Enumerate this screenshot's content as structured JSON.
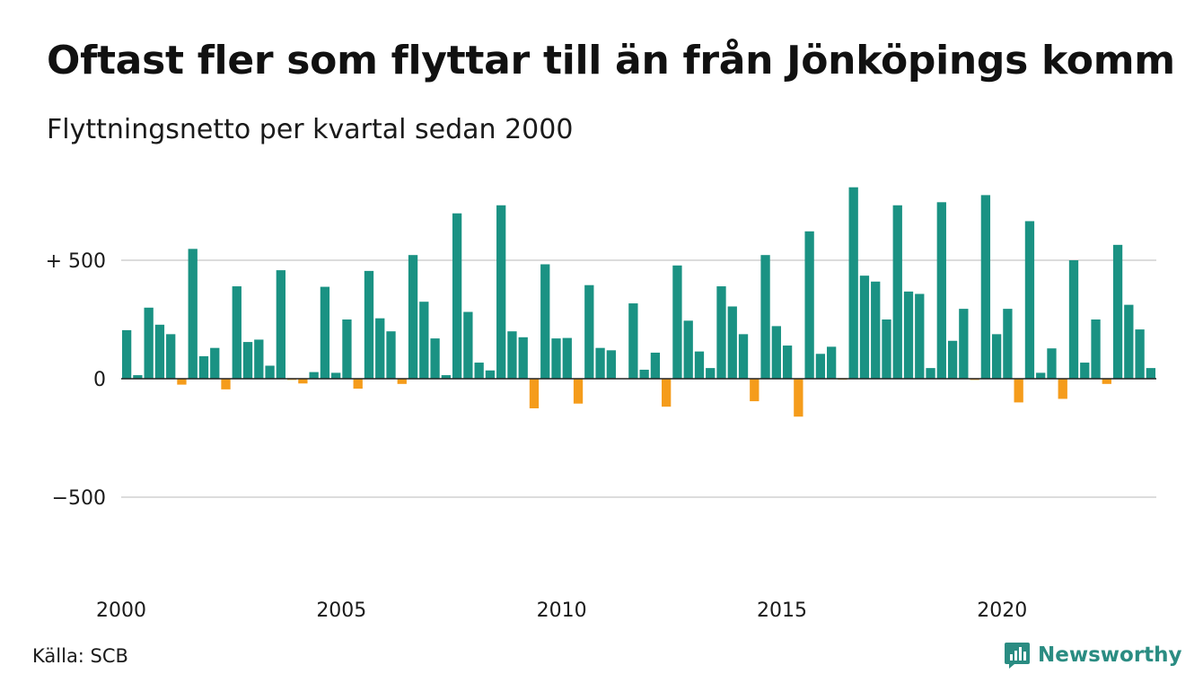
{
  "title": "Oftast fler som flyttar till än från Jönköpings kommun",
  "subtitle": "Flyttningsnetto per kvartal sedan 2000",
  "source": "Källa: SCB",
  "brand": {
    "name": "Newsworthy",
    "icon": "newsworthy-logo-icon"
  },
  "colors": {
    "positive": "#1a9283",
    "negative": "#f59c1b",
    "grid": "#dcdcdc",
    "axis": "#222222"
  },
  "chart_data": {
    "type": "bar",
    "title": "Oftast fler som flyttar till än från Jönköpings kommun",
    "subtitle": "Flyttningsnetto per kvartal sedan 2000",
    "xlabel": "",
    "ylabel": "",
    "ylim": [
      -750,
      810
    ],
    "grid": true,
    "y_ticks": [
      {
        "value": 500,
        "label": "+ 500"
      },
      {
        "value": 0,
        "label": "0"
      },
      {
        "value": -500,
        "label": "−500"
      }
    ],
    "x_ticks": [
      {
        "year": 2000,
        "label": "2000"
      },
      {
        "year": 2005,
        "label": "2005"
      },
      {
        "year": 2010,
        "label": "2010"
      },
      {
        "year": 2015,
        "label": "2015"
      },
      {
        "year": 2020,
        "label": "2020"
      }
    ],
    "series": [
      {
        "start": "2000-Q1",
        "values": [
          205,
          15,
          300,
          228,
          188,
          -25,
          548,
          95,
          130,
          -45,
          390,
          155,
          165,
          55,
          458,
          -5,
          -20,
          28,
          388,
          25,
          250,
          -42,
          455,
          255,
          200,
          -22,
          522,
          325,
          170,
          15,
          698,
          282,
          68,
          35,
          732,
          200,
          175,
          -125,
          483,
          170,
          172,
          -105,
          395,
          130,
          120,
          0,
          318,
          38,
          110,
          -118,
          478,
          245,
          115,
          45,
          390,
          305,
          188,
          -95,
          522,
          222,
          140,
          -160,
          622,
          105,
          135,
          -2,
          808,
          435,
          410,
          250,
          732,
          368,
          358,
          45,
          745,
          160,
          295,
          -5,
          775,
          188,
          295,
          -100,
          665,
          25,
          128,
          -85,
          500,
          68,
          250,
          -22,
          565,
          312,
          208,
          45
        ]
      }
    ]
  }
}
